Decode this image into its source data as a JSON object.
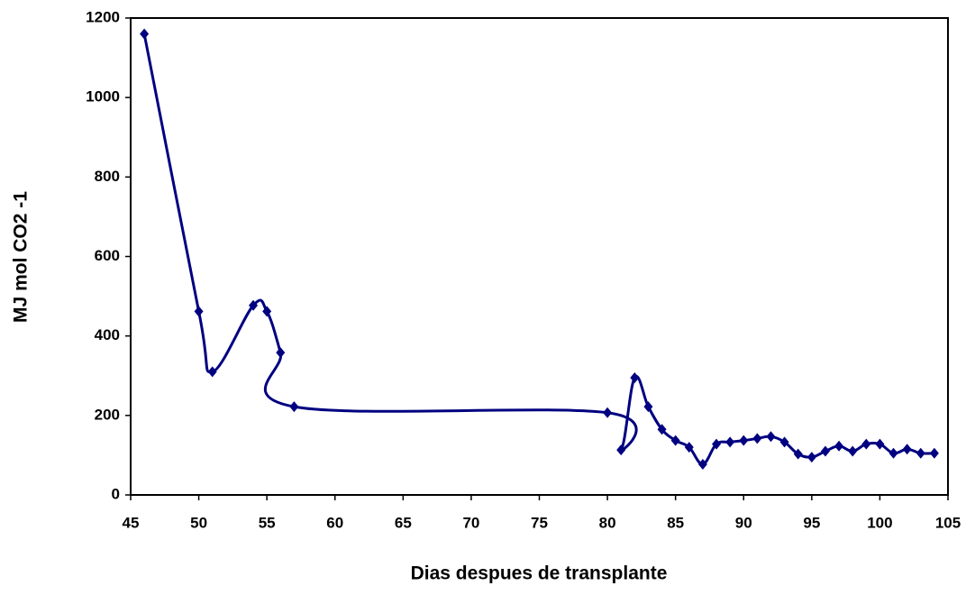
{
  "chart_data": {
    "type": "line",
    "x_label": "Dias despues de transplante",
    "y_label": "MJ mol CO2 -1",
    "series": [
      {
        "color": "#000080",
        "x": [
          46,
          50,
          51,
          54,
          55,
          56,
          57,
          80,
          81,
          82,
          83,
          84,
          85,
          86,
          87,
          88,
          89,
          90,
          91,
          92,
          93,
          94,
          95,
          96,
          97,
          98,
          99,
          100,
          101,
          102,
          103,
          104
        ],
        "values": [
          1160,
          462,
          310,
          477,
          462,
          358,
          222,
          207,
          113,
          295,
          222,
          165,
          137,
          120,
          77,
          128,
          133,
          137,
          142,
          147,
          133,
          103,
          95,
          110,
          123,
          110,
          128,
          128,
          105,
          115,
          105,
          105
        ]
      }
    ],
    "xlim": [
      45,
      105
    ],
    "xticks": [
      45,
      50,
      55,
      60,
      65,
      70,
      75,
      80,
      85,
      90,
      95,
      100,
      105
    ],
    "ylim": [
      0,
      1200
    ],
    "yticks": [
      0,
      200,
      400,
      600,
      800,
      1000,
      1200
    ]
  }
}
